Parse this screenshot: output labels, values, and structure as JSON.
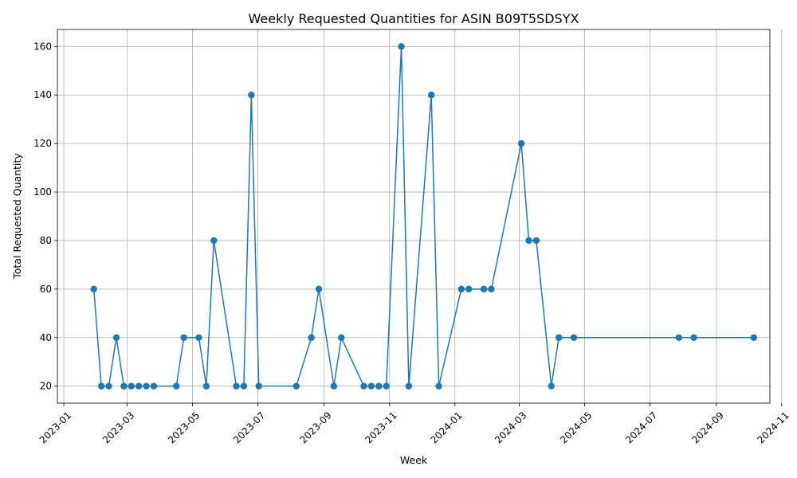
{
  "chart_data": {
    "type": "line",
    "title": "Weekly Requested Quantities for ASIN B09T5SDSYX",
    "xlabel": "Week",
    "ylabel": "Total Requested Quantity",
    "grid": true,
    "color": "#1f77b4",
    "marker": "circle",
    "xlim": [
      "2022-12-26",
      "2024-10-21"
    ],
    "ylim": [
      13,
      167
    ],
    "xticks": [
      {
        "date": "2023-01-01",
        "label": "2023-01"
      },
      {
        "date": "2023-03-01",
        "label": "2023-03"
      },
      {
        "date": "2023-05-01",
        "label": "2023-05"
      },
      {
        "date": "2023-07-01",
        "label": "2023-07"
      },
      {
        "date": "2023-09-01",
        "label": "2023-09"
      },
      {
        "date": "2023-11-01",
        "label": "2023-11"
      },
      {
        "date": "2024-01-01",
        "label": "2024-01"
      },
      {
        "date": "2024-03-01",
        "label": "2024-03"
      },
      {
        "date": "2024-05-01",
        "label": "2024-05"
      },
      {
        "date": "2024-07-01",
        "label": "2024-07"
      },
      {
        "date": "2024-09-01",
        "label": "2024-09"
      },
      {
        "date": "2024-11-01",
        "label": "2024-11"
      }
    ],
    "yticks": [
      20,
      40,
      60,
      80,
      100,
      120,
      140,
      160
    ],
    "series": [
      {
        "name": "Total Requested Quantity",
        "x": [
          "2023-01-29",
          "2023-02-05",
          "2023-02-12",
          "2023-02-19",
          "2023-02-26",
          "2023-03-05",
          "2023-03-12",
          "2023-03-19",
          "2023-03-26",
          "2023-04-16",
          "2023-04-23",
          "2023-05-07",
          "2023-05-14",
          "2023-05-21",
          "2023-06-11",
          "2023-06-18",
          "2023-06-25",
          "2023-07-02",
          "2023-08-06",
          "2023-08-20",
          "2023-08-27",
          "2023-09-10",
          "2023-09-17",
          "2023-10-08",
          "2023-10-15",
          "2023-10-22",
          "2023-10-29",
          "2023-11-12",
          "2023-11-19",
          "2023-12-10",
          "2023-12-17",
          "2024-01-07",
          "2024-01-14",
          "2024-01-28",
          "2024-02-04",
          "2024-03-03",
          "2024-03-10",
          "2024-03-17",
          "2024-03-31",
          "2024-04-07",
          "2024-04-21",
          "2024-07-28",
          "2024-08-11",
          "2024-10-06"
        ],
        "values": [
          60,
          20,
          20,
          40,
          20,
          20,
          20,
          20,
          20,
          20,
          40,
          40,
          20,
          80,
          20,
          20,
          140,
          20,
          20,
          40,
          60,
          20,
          40,
          20,
          20,
          20,
          20,
          160,
          20,
          140,
          20,
          60,
          60,
          60,
          60,
          120,
          80,
          80,
          20,
          40,
          40,
          40,
          40,
          40
        ]
      }
    ]
  }
}
